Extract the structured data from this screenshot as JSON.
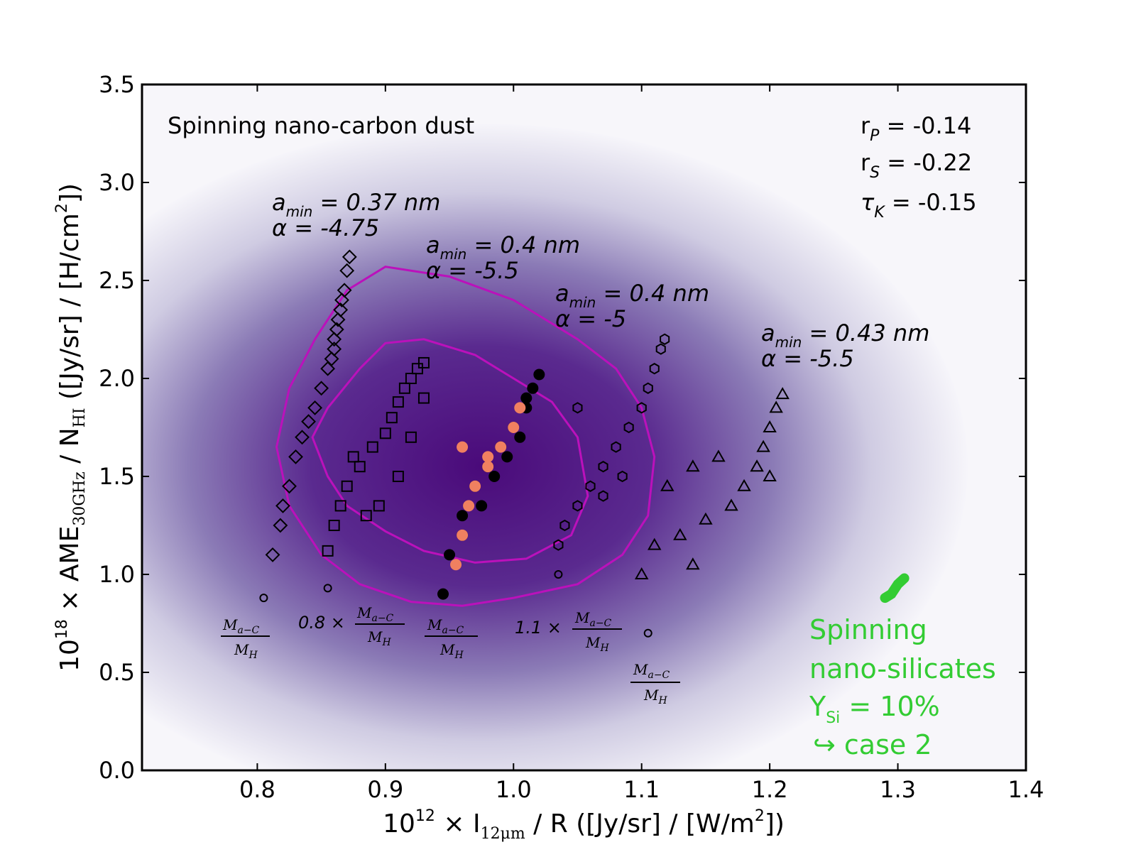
{
  "chart_data": {
    "type": "scatter",
    "title": "Spinning nano-carbon dust",
    "xlabel": "10^12 × I_12μm / R ([Jy/sr] / [W/m^2])",
    "xlabel_parts": {
      "pre": "10",
      "exp": "12",
      "mid": " × I",
      "sub": "12μm",
      "post": " / R ([Jy/sr] / [W/m",
      "sq": "2",
      "end": "])"
    },
    "ylabel": "10^18 × AME_30GHz / N_HI ([Jy/sr] / [H/cm^2])",
    "ylabel_parts": {
      "pre": "10",
      "exp": "18",
      "mid": " × AME",
      "sub": "30GHz",
      "mid2": " / N",
      "sub2": "HI",
      "post": " ([Jy/sr] / [H/cm",
      "sq": "2",
      "end": "])"
    },
    "xlim": [
      0.71,
      1.4
    ],
    "ylim": [
      0.0,
      3.5
    ],
    "xticks": [
      "0.8",
      "0.9",
      "1.0",
      "1.1",
      "1.2",
      "1.3",
      "1.4"
    ],
    "xtick_values": [
      0.8,
      0.9,
      1.0,
      1.1,
      1.2,
      1.3,
      1.4
    ],
    "yticks": [
      "0.0",
      "0.5",
      "1.0",
      "1.5",
      "2.0",
      "2.5",
      "3.0",
      "3.5"
    ],
    "ytick_values": [
      0.0,
      0.5,
      1.0,
      1.5,
      2.0,
      2.5,
      3.0,
      3.5
    ],
    "stats": [
      {
        "label": "r",
        "sub": "P",
        "value": " = -0.14"
      },
      {
        "label": "r",
        "sub": "S",
        "value": " = -0.22"
      },
      {
        "label": "τ",
        "sub": "K",
        "value": " = -0.15"
      }
    ],
    "density_peak": {
      "x": 0.975,
      "y": 1.55
    },
    "contours": [
      {
        "name": "outer",
        "color": "#bb11bb",
        "points": [
          [
            0.825,
            1.95
          ],
          [
            0.845,
            2.2
          ],
          [
            0.87,
            2.45
          ],
          [
            0.9,
            2.57
          ],
          [
            0.95,
            2.52
          ],
          [
            1.0,
            2.4
          ],
          [
            1.05,
            2.2
          ],
          [
            1.08,
            2.05
          ],
          [
            1.1,
            1.85
          ],
          [
            1.11,
            1.6
          ],
          [
            1.105,
            1.3
          ],
          [
            1.085,
            1.1
          ],
          [
            1.05,
            0.95
          ],
          [
            1.0,
            0.88
          ],
          [
            0.96,
            0.84
          ],
          [
            0.92,
            0.86
          ],
          [
            0.88,
            0.95
          ],
          [
            0.85,
            1.1
          ],
          [
            0.825,
            1.35
          ],
          [
            0.815,
            1.65
          ],
          [
            0.825,
            1.95
          ]
        ]
      },
      {
        "name": "inner",
        "color": "#bb11bb",
        "points": [
          [
            0.855,
            1.85
          ],
          [
            0.88,
            2.05
          ],
          [
            0.9,
            2.18
          ],
          [
            0.93,
            2.2
          ],
          [
            0.97,
            2.12
          ],
          [
            1.0,
            2.0
          ],
          [
            1.03,
            1.88
          ],
          [
            1.05,
            1.7
          ],
          [
            1.058,
            1.4
          ],
          [
            1.045,
            1.2
          ],
          [
            1.01,
            1.08
          ],
          [
            0.97,
            1.06
          ],
          [
            0.93,
            1.12
          ],
          [
            0.9,
            1.22
          ],
          [
            0.87,
            1.35
          ],
          [
            0.855,
            1.5
          ],
          [
            0.843,
            1.7
          ],
          [
            0.855,
            1.85
          ]
        ]
      }
    ],
    "series": [
      {
        "name": "amin=0.37nm alpha=-4.75",
        "marker": "diamond",
        "color": "#000000",
        "points": [
          [
            0.812,
            1.1
          ],
          [
            0.818,
            1.25
          ],
          [
            0.82,
            1.35
          ],
          [
            0.825,
            1.45
          ],
          [
            0.83,
            1.6
          ],
          [
            0.835,
            1.7
          ],
          [
            0.84,
            1.78
          ],
          [
            0.845,
            1.85
          ],
          [
            0.85,
            1.95
          ],
          [
            0.855,
            2.05
          ],
          [
            0.86,
            2.15
          ],
          [
            0.862,
            2.25
          ],
          [
            0.865,
            2.35
          ],
          [
            0.868,
            2.45
          ],
          [
            0.87,
            2.55
          ],
          [
            0.872,
            2.62
          ],
          [
            0.86,
            2.2
          ],
          [
            0.858,
            2.1
          ],
          [
            0.863,
            2.3
          ],
          [
            0.866,
            2.4
          ]
        ]
      },
      {
        "name": "amin=0.4nm alpha=-5.5",
        "marker": "square",
        "color": "#000000",
        "points": [
          [
            0.855,
            1.12
          ],
          [
            0.86,
            1.25
          ],
          [
            0.865,
            1.35
          ],
          [
            0.87,
            1.45
          ],
          [
            0.88,
            1.55
          ],
          [
            0.89,
            1.65
          ],
          [
            0.9,
            1.72
          ],
          [
            0.905,
            1.8
          ],
          [
            0.91,
            1.88
          ],
          [
            0.915,
            1.95
          ],
          [
            0.92,
            2.0
          ],
          [
            0.925,
            2.05
          ],
          [
            0.93,
            2.08
          ],
          [
            0.895,
            1.35
          ],
          [
            0.885,
            1.3
          ],
          [
            0.875,
            1.6
          ],
          [
            0.91,
            1.5
          ],
          [
            0.92,
            1.7
          ],
          [
            0.93,
            1.9
          ]
        ]
      },
      {
        "name": "amin=0.4nm alpha=-5",
        "marker": "circle-filled",
        "color": "#000000",
        "points": [
          [
            0.945,
            0.9
          ],
          [
            0.95,
            1.1
          ],
          [
            0.96,
            1.3
          ],
          [
            0.97,
            1.45
          ],
          [
            0.98,
            1.55
          ],
          [
            0.99,
            1.65
          ],
          [
            1.0,
            1.75
          ],
          [
            1.01,
            1.85
          ],
          [
            1.015,
            1.95
          ],
          [
            1.02,
            2.02
          ],
          [
            0.96,
            1.2
          ],
          [
            0.975,
            1.35
          ],
          [
            0.985,
            1.5
          ],
          [
            0.995,
            1.6
          ],
          [
            1.005,
            1.7
          ],
          [
            1.01,
            1.9
          ]
        ]
      },
      {
        "name": "amin=0.4nm alpha=-5 (variant)",
        "marker": "circle-filled",
        "color": "#f08060",
        "points": [
          [
            0.955,
            1.05
          ],
          [
            0.96,
            1.2
          ],
          [
            0.965,
            1.35
          ],
          [
            0.97,
            1.45
          ],
          [
            0.98,
            1.55
          ],
          [
            0.99,
            1.65
          ],
          [
            1.0,
            1.75
          ],
          [
            1.005,
            1.85
          ],
          [
            0.96,
            1.65
          ],
          [
            0.98,
            1.6
          ]
        ]
      },
      {
        "name": "amin=0.4nm alpha=-5 hexagon",
        "marker": "hexagon",
        "color": "#000000",
        "points": [
          [
            1.035,
            1.15
          ],
          [
            1.04,
            1.25
          ],
          [
            1.05,
            1.35
          ],
          [
            1.06,
            1.45
          ],
          [
            1.07,
            1.55
          ],
          [
            1.08,
            1.65
          ],
          [
            1.09,
            1.75
          ],
          [
            1.1,
            1.85
          ],
          [
            1.105,
            1.95
          ],
          [
            1.11,
            2.05
          ],
          [
            1.115,
            2.15
          ],
          [
            1.118,
            2.2
          ],
          [
            1.05,
            1.85
          ],
          [
            1.07,
            1.4
          ],
          [
            1.085,
            1.5
          ]
        ]
      },
      {
        "name": "amin=0.43nm alpha=-5.5",
        "marker": "triangle",
        "color": "#000000",
        "points": [
          [
            1.1,
            1.0
          ],
          [
            1.11,
            1.15
          ],
          [
            1.13,
            1.2
          ],
          [
            1.15,
            1.28
          ],
          [
            1.17,
            1.35
          ],
          [
            1.18,
            1.45
          ],
          [
            1.19,
            1.55
          ],
          [
            1.195,
            1.65
          ],
          [
            1.2,
            1.75
          ],
          [
            1.205,
            1.85
          ],
          [
            1.21,
            1.92
          ],
          [
            1.12,
            1.45
          ],
          [
            1.14,
            1.55
          ],
          [
            1.16,
            1.6
          ],
          [
            1.2,
            1.5
          ],
          [
            1.14,
            1.05
          ]
        ]
      },
      {
        "name": "mass_ratio_stacks",
        "marker": "mixed",
        "color": "#000000",
        "points": [
          [
            0.805,
            0.88
          ],
          [
            0.855,
            0.93
          ],
          [
            0.945,
            0.9
          ],
          [
            1.035,
            1.0
          ],
          [
            1.105,
            0.7
          ]
        ]
      },
      {
        "name": "Spinning nano-silicates",
        "marker": "line",
        "color": "#33cc33",
        "points": [
          [
            1.29,
            0.88
          ],
          [
            1.295,
            0.9
          ],
          [
            1.3,
            0.95
          ],
          [
            1.305,
            0.98
          ]
        ]
      }
    ],
    "annotations": [
      {
        "line1": "a",
        "sub1": "min",
        "rest1": " = 0.37 nm",
        "line2": "α = -4.75"
      },
      {
        "line1": "a",
        "sub1": "min",
        "rest1": " = 0.4 nm",
        "line2": "α = -5.5"
      },
      {
        "line1": "a",
        "sub1": "min",
        "rest1": " = 0.4 nm",
        "line2": "α = -5"
      },
      {
        "line1": "a",
        "sub1": "min",
        "rest1": " = 0.43 nm",
        "line2": "α = -5.5"
      }
    ],
    "mass_labels": [
      {
        "prefix": "",
        "num": "M",
        "num_sub": "a−C",
        "den": "M",
        "den_sub": "H"
      },
      {
        "prefix": "0.8 × ",
        "num": "M",
        "num_sub": "a−C",
        "den": "M",
        "den_sub": "H"
      },
      {
        "prefix": "",
        "num": "M",
        "num_sub": "a−C",
        "den": "M",
        "den_sub": "H"
      },
      {
        "prefix": "1.1 × ",
        "num": "M",
        "num_sub": "a−C",
        "den": "M",
        "den_sub": "H"
      },
      {
        "prefix": "",
        "num": "M",
        "num_sub": "a−C",
        "den": "M",
        "den_sub": "H"
      }
    ],
    "silicate_label": {
      "line1": "Spinning",
      "line2": "nano-silicates",
      "line3_pre": "Y",
      "line3_sub": "Si",
      "line3_post": " = 10%",
      "line4": "↪ case 2",
      "color": "#33cc33"
    }
  }
}
